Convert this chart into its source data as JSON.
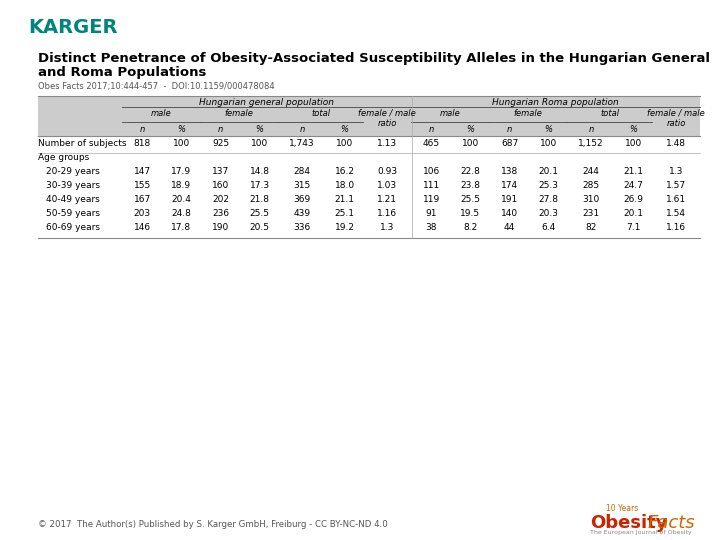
{
  "karger_color": "#00857C",
  "title_line1": "Distinct Penetrance of Obesity-Associated Susceptibility Alleles in the Hungarian General",
  "title_line2": "and Roma Populations",
  "subtitle": "Obes Facts 2017;10:444-457  -  DOI:10.1159/000478084",
  "copyright_text": "© 2017  The Author(s) Published by S. Karger GmbH, Freiburg - CC BY-NC-ND 4.0",
  "bg_color": "#ffffff",
  "header_bg": "#cccccc",
  "row_labels": [
    "Number of subjects",
    "Age groups",
    "20-29 years",
    "30-39 years",
    "40-49 years",
    "50-59 years",
    "60-69 years"
  ],
  "table_data": [
    [
      "818",
      "100",
      "925",
      "100",
      "1,743",
      "100",
      "1.13",
      "465",
      "100",
      "687",
      "100",
      "1,152",
      "100",
      "1.48"
    ],
    [
      "",
      "",
      "",
      "",
      "",
      "",
      "",
      "",
      "",
      "",
      "",
      "",
      "",
      ""
    ],
    [
      "147",
      "17.9",
      "137",
      "14.8",
      "284",
      "16.2",
      "0.93",
      "106",
      "22.8",
      "138",
      "20.1",
      "244",
      "21.1",
      "1.3"
    ],
    [
      "155",
      "18.9",
      "160",
      "17.3",
      "315",
      "18.0",
      "1.03",
      "111",
      "23.8",
      "174",
      "25.3",
      "285",
      "24.7",
      "1.57"
    ],
    [
      "167",
      "20.4",
      "202",
      "21.8",
      "369",
      "21.1",
      "1.21",
      "119",
      "25.5",
      "191",
      "27.8",
      "310",
      "26.9",
      "1.61"
    ],
    [
      "203",
      "24.8",
      "236",
      "25.5",
      "439",
      "25.1",
      "1.16",
      "91",
      "19.5",
      "140",
      "20.3",
      "231",
      "20.1",
      "1.54"
    ],
    [
      "146",
      "17.8",
      "190",
      "20.5",
      "336",
      "19.2",
      "1.3",
      "38",
      "8.2",
      "44",
      "6.4",
      "82",
      "7.1",
      "1.16"
    ]
  ]
}
